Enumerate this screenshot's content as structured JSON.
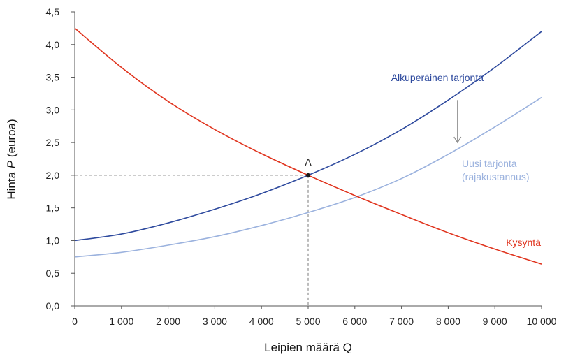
{
  "chart_data": {
    "type": "line",
    "title": "",
    "xlabel": "Leipien määrä Q",
    "ylabel_prefix": "Hinta ",
    "ylabel_var": "P",
    "ylabel_suffix": " (euroa)",
    "xlim": [
      0,
      10000
    ],
    "ylim": [
      0,
      4.5
    ],
    "x_ticks": [
      0,
      1000,
      2000,
      3000,
      4000,
      5000,
      6000,
      7000,
      8000,
      9000,
      10000
    ],
    "x_tick_labels": [
      "0",
      "1 000",
      "2 000",
      "3 000",
      "4 000",
      "5 000",
      "6 000",
      "7 000",
      "8 000",
      "9 000",
      "10 000"
    ],
    "y_ticks": [
      0,
      0.5,
      1,
      1.5,
      2,
      2.5,
      3,
      3.5,
      4,
      4.5
    ],
    "y_tick_labels": [
      "0,0",
      "0,5",
      "1,0",
      "1,5",
      "2,0",
      "2,5",
      "3,0",
      "3,5",
      "4,0",
      "4,5"
    ],
    "x": [
      0,
      1000,
      2000,
      3000,
      4000,
      5000,
      6000,
      7000,
      8000,
      9000,
      10000
    ],
    "series": [
      {
        "name": "Kysyntä",
        "color": "#e0341e",
        "values": [
          4.25,
          3.65,
          3.13,
          2.7,
          2.33,
          2.0,
          1.69,
          1.4,
          1.12,
          0.87,
          0.64
        ],
        "label_lines": [
          "Kysyntä"
        ]
      },
      {
        "name": "Alkuperäinen tarjonta",
        "color": "#2e4a9e",
        "values": [
          1.0,
          1.1,
          1.27,
          1.48,
          1.72,
          2.0,
          2.32,
          2.7,
          3.15,
          3.65,
          4.2
        ],
        "label_lines": [
          "Alkuperäinen tarjonta"
        ]
      },
      {
        "name": "Uusi tarjonta (rajakustannus)",
        "color": "#9bb2de",
        "values": [
          0.75,
          0.82,
          0.93,
          1.06,
          1.23,
          1.43,
          1.66,
          1.95,
          2.32,
          2.74,
          3.19
        ],
        "label_lines": [
          "Uusi tarjonta",
          "(rajakustannus)"
        ]
      }
    ],
    "annotations": {
      "equilibrium_point": {
        "label": "A",
        "x": 5000,
        "y": 2.0
      },
      "shift_arrow": {
        "x": 8200,
        "y_from": 3.15,
        "y_to": 2.5,
        "color": "#8a8a8a"
      }
    },
    "grid": false
  }
}
